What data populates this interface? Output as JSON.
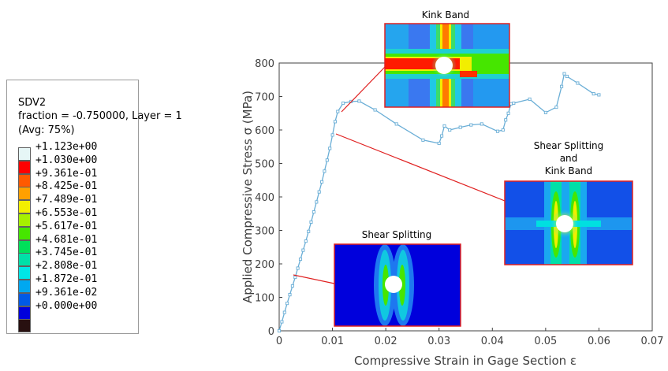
{
  "legend": {
    "var": "SDV2",
    "line2": "fraction = -0.750000, Layer = 1",
    "line3": "(Avg: 75%)",
    "entries": [
      {
        "label": "+1.123e+00",
        "color": "#e6f6f6"
      },
      {
        "label": "+1.030e+00",
        "color": "#ff0000"
      },
      {
        "label": "+9.361e-01",
        "color": "#ff5a00"
      },
      {
        "label": "+8.425e-01",
        "color": "#ffa000"
      },
      {
        "label": "+7.489e-01",
        "color": "#f2ee00"
      },
      {
        "label": "+6.553e-01",
        "color": "#a6f000"
      },
      {
        "label": "+5.617e-01",
        "color": "#46e600"
      },
      {
        "label": "+4.681e-01",
        "color": "#00e05a"
      },
      {
        "label": "+3.745e-01",
        "color": "#00e0a8"
      },
      {
        "label": "+2.808e-01",
        "color": "#00e6e6"
      },
      {
        "label": "+1.872e-01",
        "color": "#00a8f0"
      },
      {
        "label": "+9.361e-02",
        "color": "#005ae6"
      },
      {
        "label": "+0.000e+00",
        "color": "#0000dc"
      },
      {
        "label": "",
        "color": "#281010"
      }
    ]
  },
  "chart_data": {
    "type": "line",
    "xlabel": "Compressive Strain in Gage Section ε",
    "ylabel": "Applied Compressive Stress σ (MPa)",
    "xlim": [
      0,
      0.07
    ],
    "ylim": [
      0,
      800
    ],
    "xticks": [
      "0",
      "0.01",
      "0.02",
      "0.03",
      "0.04",
      "0.05",
      "0.06",
      "0.07"
    ],
    "yticks": [
      "0",
      "100",
      "200",
      "300",
      "400",
      "500",
      "600",
      "700",
      "800"
    ],
    "grid": false,
    "series": [
      {
        "color": "#6aaed6",
        "x": [
          0,
          0.0005,
          0.001,
          0.0015,
          0.002,
          0.0025,
          0.003,
          0.0035,
          0.004,
          0.0045,
          0.005,
          0.0055,
          0.006,
          0.0065,
          0.007,
          0.0075,
          0.008,
          0.0085,
          0.009,
          0.0095,
          0.01,
          0.0105,
          0.011,
          0.012,
          0.0135,
          0.015,
          0.018,
          0.022,
          0.027,
          0.03,
          0.0305,
          0.031,
          0.032,
          0.034,
          0.036,
          0.038,
          0.041,
          0.042,
          0.0425,
          0.043,
          0.0435,
          0.044,
          0.047,
          0.05,
          0.052,
          0.053,
          0.0535,
          0.054,
          0.056,
          0.059,
          0.06
        ],
        "y": [
          0,
          27,
          55,
          82,
          108,
          134,
          160,
          187,
          214,
          241,
          268,
          297,
          325,
          355,
          385,
          415,
          445,
          477,
          510,
          545,
          585,
          625,
          655,
          680,
          685,
          686,
          660,
          618,
          570,
          560,
          582,
          612,
          600,
          608,
          615,
          618,
          596,
          600,
          630,
          650,
          678,
          680,
          692,
          652,
          668,
          730,
          768,
          760,
          740,
          708,
          705
        ]
      }
    ],
    "annotations": [
      {
        "text": "Kink Band"
      },
      {
        "text": "Shear Splitting\nand\nKink Band"
      },
      {
        "text": "Shear Splitting"
      }
    ]
  }
}
